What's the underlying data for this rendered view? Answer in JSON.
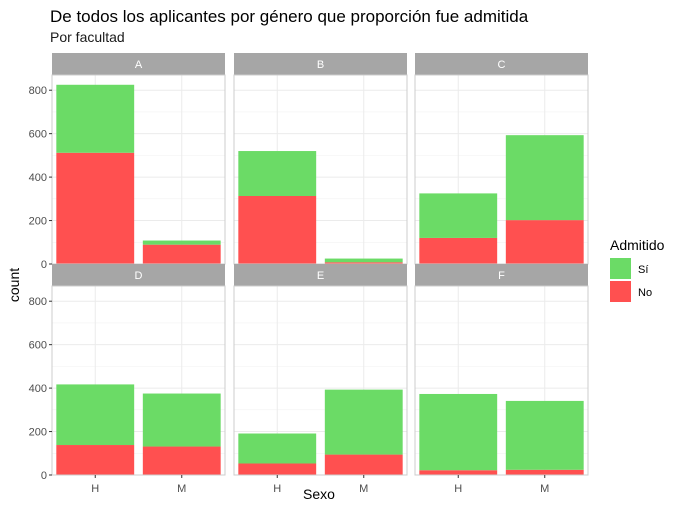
{
  "chart_data": {
    "type": "bar",
    "stacked": true,
    "title": "De todos los aplicantes por género que proporción fue admitida",
    "subtitle": "Por facultad",
    "xlabel": "Sexo",
    "ylabel": "count",
    "categories": [
      "H",
      "M"
    ],
    "ylim": [
      0,
      870
    ],
    "yticks": [
      0,
      200,
      400,
      600,
      800
    ],
    "grid": true,
    "legend": {
      "title": "Admitido",
      "position": "right",
      "entries": [
        {
          "key": "si",
          "label": "Sí",
          "color": "#6BDB66"
        },
        {
          "key": "no",
          "label": "No",
          "color": "#FF5050"
        }
      ]
    },
    "facet_label": "facultad",
    "panels": [
      {
        "facet": "A",
        "series": {
          "no": [
            512,
            89
          ],
          "si": [
            313,
            19
          ]
        }
      },
      {
        "facet": "B",
        "series": {
          "no": [
            313,
            8
          ],
          "si": [
            207,
            17
          ]
        }
      },
      {
        "facet": "C",
        "series": {
          "no": [
            120,
            202
          ],
          "si": [
            205,
            391
          ]
        }
      },
      {
        "facet": "D",
        "series": {
          "no": [
            138,
            131
          ],
          "si": [
            279,
            244
          ]
        }
      },
      {
        "facet": "E",
        "series": {
          "no": [
            53,
            94
          ],
          "si": [
            138,
            299
          ]
        }
      },
      {
        "facet": "F",
        "series": {
          "no": [
            22,
            24
          ],
          "si": [
            351,
            317
          ]
        }
      }
    ]
  }
}
